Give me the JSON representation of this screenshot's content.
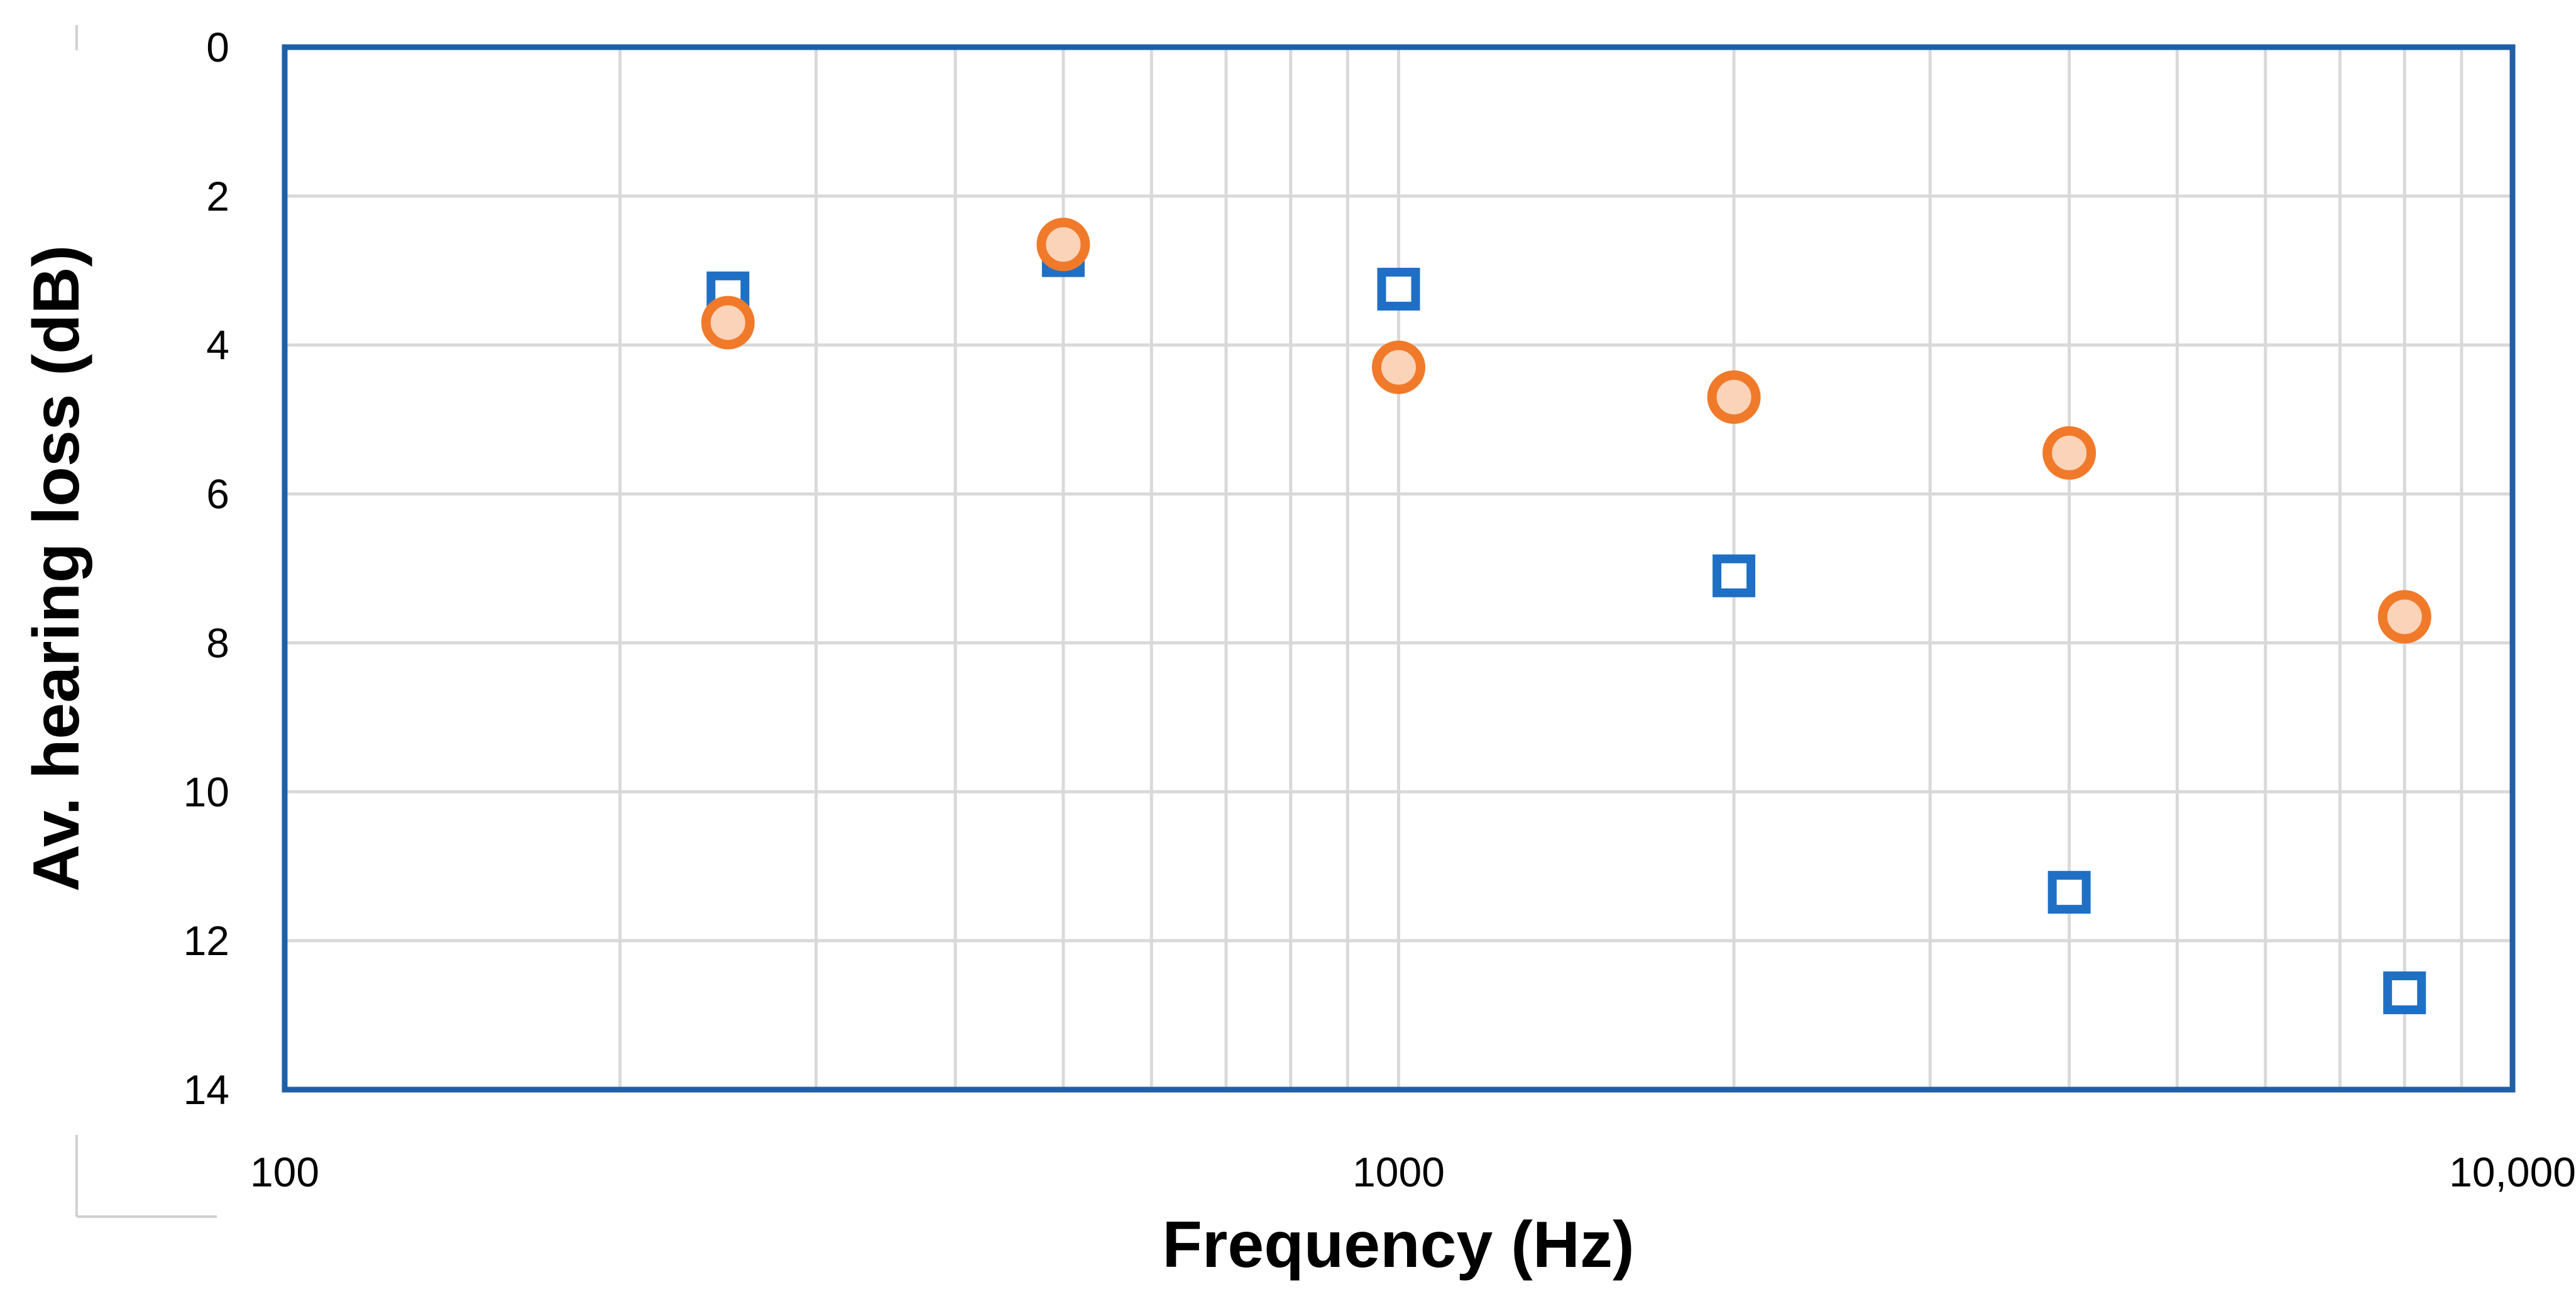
{
  "chart_data": {
    "type": "scatter",
    "xlabel": "Frequency (Hz)",
    "ylabel": "Av. hearing loss (dB)",
    "x_scale": "log",
    "xlim": [
      100,
      10000
    ],
    "ylim": [
      0,
      14
    ],
    "y_inverted": true,
    "x_ticks": [
      {
        "value": 100,
        "label": "100"
      },
      {
        "value": 1000,
        "label": "1000"
      },
      {
        "value": 10000,
        "label": "10,000"
      }
    ],
    "y_ticks": [
      {
        "value": 0,
        "label": "0"
      },
      {
        "value": 2,
        "label": "2"
      },
      {
        "value": 4,
        "label": "4"
      },
      {
        "value": 6,
        "label": "6"
      },
      {
        "value": 8,
        "label": "8"
      },
      {
        "value": 10,
        "label": "10"
      },
      {
        "value": 12,
        "label": "12"
      },
      {
        "value": 14,
        "label": "14"
      }
    ],
    "grid": true,
    "series": [
      {
        "marker": "square",
        "color": "#1f6fc5",
        "points": [
          {
            "x": 250,
            "y": 3.3
          },
          {
            "x": 500,
            "y": 2.8
          },
          {
            "x": 1000,
            "y": 3.25
          },
          {
            "x": 2000,
            "y": 7.1
          },
          {
            "x": 4000,
            "y": 11.35
          },
          {
            "x": 8000,
            "y": 12.7
          }
        ]
      },
      {
        "marker": "circle",
        "color": "#f07a2a",
        "fill": "#fbd3b8",
        "points": [
          {
            "x": 250,
            "y": 3.7
          },
          {
            "x": 500,
            "y": 2.65
          },
          {
            "x": 1000,
            "y": 4.3
          },
          {
            "x": 2000,
            "y": 4.7
          },
          {
            "x": 4000,
            "y": 5.45
          },
          {
            "x": 8000,
            "y": 7.65
          }
        ]
      }
    ]
  }
}
